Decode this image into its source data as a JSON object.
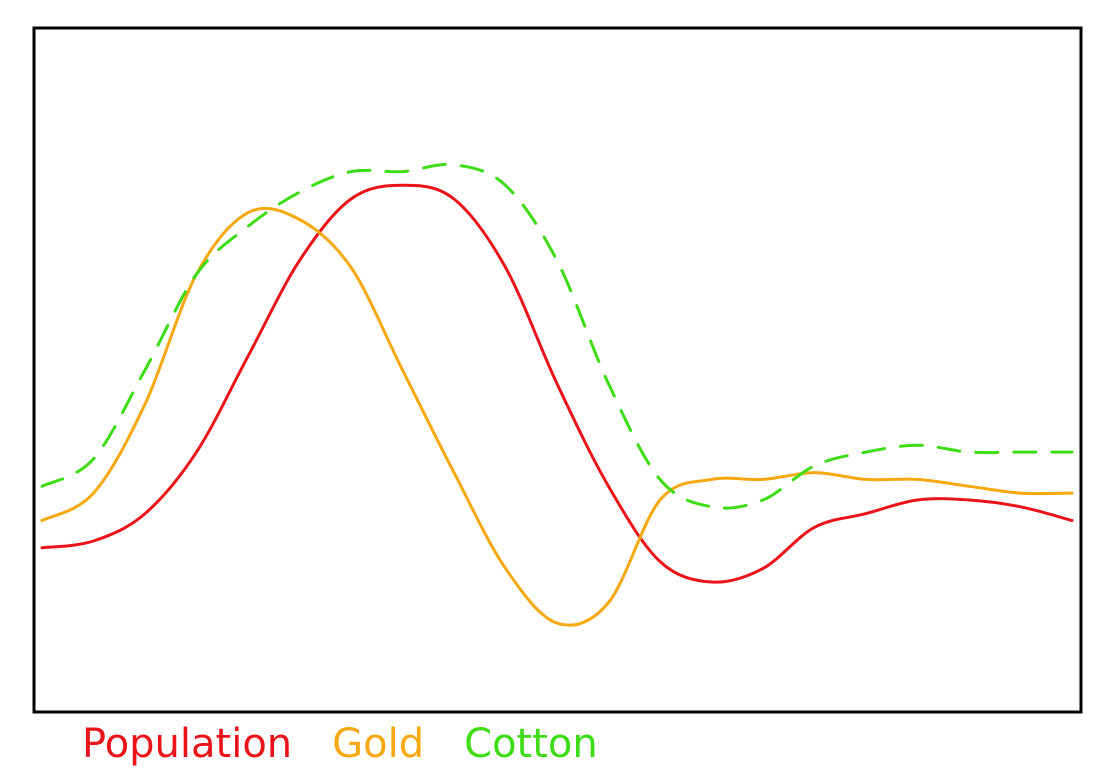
{
  "chart_data": {
    "type": "line",
    "title": "",
    "xlabel": "",
    "ylabel": "",
    "axes_ticks": false,
    "grid": false,
    "legend": "bottom-left",
    "x": [
      0,
      5,
      10,
      15,
      20,
      25,
      30,
      35,
      40,
      45,
      50,
      55,
      60,
      65,
      70,
      75,
      80,
      85,
      90,
      95,
      100
    ],
    "series": [
      {
        "name": "Population",
        "color": "#e8141a",
        "style": "solid",
        "values": [
          24,
          25,
          29,
          38,
          52,
          66,
          75,
          77,
          75,
          65,
          48,
          33,
          22,
          19,
          21,
          27,
          29,
          31,
          31,
          30,
          28
        ]
      },
      {
        "name": "Gold",
        "color": "#f5a80f",
        "style": "solid",
        "values": [
          28,
          32,
          45,
          64,
          73,
          72,
          65,
          50,
          35,
          21,
          13,
          16,
          31,
          34,
          34,
          35,
          34,
          34,
          33,
          32,
          32
        ]
      },
      {
        "name": "Cotton",
        "color": "#3ddc14",
        "style": "dashed",
        "values": [
          33,
          37,
          50,
          64,
          71,
          76,
          79,
          79,
          80,
          77,
          66,
          48,
          34,
          30,
          31,
          36,
          38,
          39,
          38,
          38,
          38
        ]
      }
    ],
    "ylim": [
      0,
      100
    ],
    "xlim": [
      0,
      100
    ]
  }
}
